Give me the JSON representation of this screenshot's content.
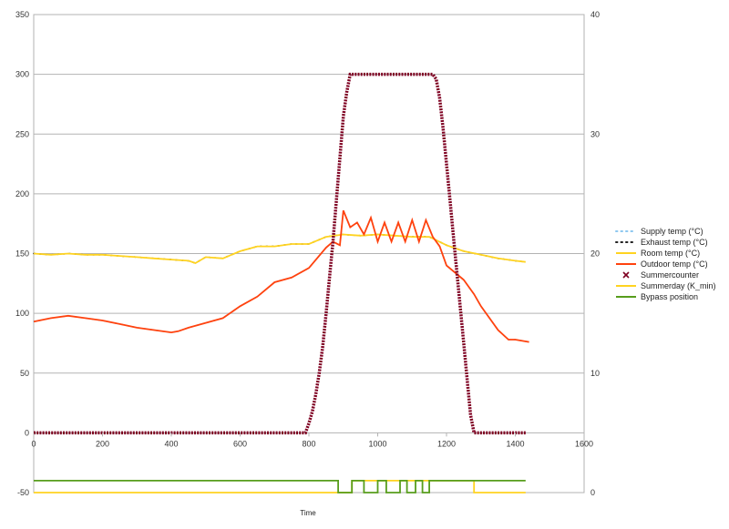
{
  "chart_data": {
    "type": "line",
    "title": "",
    "xlabel": "Time",
    "xlim": [
      0,
      1600
    ],
    "x_ticks": [
      0,
      200,
      400,
      600,
      800,
      1000,
      1200,
      1400,
      1600
    ],
    "y_left": {
      "ylim": [
        -50,
        350
      ],
      "ticks": [
        -50,
        0,
        50,
        100,
        150,
        200,
        250,
        300,
        350
      ]
    },
    "y_right": {
      "ylim": [
        0,
        40
      ],
      "ticks": [
        0,
        10,
        20,
        30,
        40
      ]
    },
    "grid": true,
    "legend_position": "right",
    "series": [
      {
        "name": "Supply temp (°C)",
        "axis": "right",
        "style": "dotted",
        "color": "#8ec8f0",
        "x": [
          0,
          50,
          100,
          150,
          200,
          250,
          300,
          350,
          400,
          420,
          450,
          500,
          550,
          600,
          650,
          700,
          750,
          800,
          850,
          870,
          890,
          900,
          920,
          940,
          960,
          980,
          1000,
          1020,
          1040,
          1060,
          1080,
          1100,
          1120,
          1140,
          1160,
          1180,
          1200,
          1250,
          1280,
          1300,
          1350,
          1380,
          1400,
          1440
        ],
        "values": [
          14.3,
          14.6,
          14.8,
          14.6,
          14.4,
          14.1,
          13.8,
          13.6,
          13.4,
          13.5,
          13.8,
          14.2,
          14.6,
          15.6,
          16.4,
          17.6,
          18.0,
          18.8,
          20.5,
          21.0,
          20.7,
          23.6,
          22.2,
          22.6,
          21.6,
          23.0,
          21.0,
          22.6,
          21.0,
          22.6,
          21.0,
          22.8,
          21.0,
          22.8,
          21.4,
          20.6,
          19.0,
          17.8,
          16.6,
          15.6,
          13.6,
          12.8,
          12.8,
          12.6
        ]
      },
      {
        "name": "Exhaust temp (°C)",
        "axis": "right",
        "style": "dotted",
        "color": "#222222",
        "x": [
          0,
          50,
          100,
          150,
          200,
          250,
          300,
          350,
          400,
          450,
          470,
          500,
          550,
          600,
          650,
          700,
          750,
          800,
          850,
          900,
          950,
          1000,
          1050,
          1100,
          1150,
          1200,
          1250,
          1300,
          1350,
          1400,
          1430
        ],
        "values": [
          20.0,
          19.9,
          20.0,
          19.9,
          19.9,
          19.8,
          19.7,
          19.6,
          19.5,
          19.4,
          19.2,
          19.7,
          19.6,
          20.2,
          20.6,
          20.6,
          20.8,
          20.8,
          21.4,
          21.6,
          21.5,
          21.6,
          21.5,
          21.4,
          21.4,
          20.7,
          20.2,
          19.9,
          19.6,
          19.4,
          19.3
        ]
      },
      {
        "name": "Room temp (°C)",
        "axis": "right",
        "style": "solid",
        "color": "#ffd320",
        "x": [
          0,
          50,
          100,
          150,
          200,
          250,
          300,
          350,
          400,
          450,
          470,
          500,
          550,
          600,
          650,
          700,
          750,
          800,
          850,
          900,
          950,
          1000,
          1050,
          1100,
          1150,
          1200,
          1250,
          1300,
          1350,
          1400,
          1430
        ],
        "values": [
          20.0,
          19.9,
          20.0,
          19.9,
          19.9,
          19.8,
          19.7,
          19.6,
          19.5,
          19.4,
          19.2,
          19.7,
          19.6,
          20.2,
          20.6,
          20.6,
          20.8,
          20.8,
          21.4,
          21.6,
          21.5,
          21.6,
          21.5,
          21.4,
          21.4,
          20.7,
          20.2,
          19.9,
          19.6,
          19.4,
          19.3
        ]
      },
      {
        "name": "Outdoor temp (°C)",
        "axis": "right",
        "style": "solid",
        "color": "#ff420e",
        "x": [
          0,
          50,
          100,
          150,
          200,
          250,
          300,
          350,
          400,
          420,
          450,
          500,
          550,
          600,
          650,
          700,
          750,
          800,
          850,
          870,
          890,
          900,
          920,
          940,
          960,
          980,
          1000,
          1020,
          1040,
          1060,
          1080,
          1100,
          1120,
          1140,
          1160,
          1180,
          1200,
          1250,
          1280,
          1300,
          1350,
          1380,
          1400,
          1440
        ],
        "values": [
          14.3,
          14.6,
          14.8,
          14.6,
          14.4,
          14.1,
          13.8,
          13.6,
          13.4,
          13.5,
          13.8,
          14.2,
          14.6,
          15.6,
          16.4,
          17.6,
          18.0,
          18.8,
          20.5,
          21.0,
          20.7,
          23.6,
          22.2,
          22.6,
          21.6,
          23.0,
          21.0,
          22.6,
          21.0,
          22.6,
          21.0,
          22.8,
          21.0,
          22.8,
          21.4,
          20.6,
          19.0,
          17.8,
          16.6,
          15.6,
          13.6,
          12.8,
          12.8,
          12.6
        ]
      },
      {
        "name": "Summercounter",
        "axis": "left",
        "style": "markers",
        "color": "#7e0021",
        "x": [
          0,
          100,
          200,
          300,
          400,
          500,
          600,
          700,
          790,
          800,
          810,
          820,
          830,
          840,
          850,
          860,
          870,
          880,
          890,
          900,
          910,
          920,
          1000,
          1100,
          1160,
          1170,
          1180,
          1190,
          1200,
          1210,
          1220,
          1230,
          1240,
          1250,
          1260,
          1270,
          1280,
          1300,
          1400,
          1430
        ],
        "values": [
          0,
          0,
          0,
          0,
          0,
          0,
          0,
          0,
          0,
          8,
          18,
          32,
          50,
          72,
          100,
          130,
          160,
          195,
          230,
          265,
          285,
          300,
          300,
          300,
          300,
          296,
          280,
          255,
          225,
          195,
          165,
          135,
          105,
          75,
          45,
          15,
          0,
          0,
          0,
          0
        ]
      },
      {
        "name": "Summerday (K_min)",
        "axis": "right",
        "style": "step",
        "color": "#ffd320",
        "x": [
          0,
          925,
          925,
          1280,
          1280,
          1430
        ],
        "values": [
          0,
          0,
          1,
          1,
          0,
          0
        ]
      },
      {
        "name": "Bypass position",
        "axis": "right",
        "style": "step",
        "color": "#579d1c",
        "x": [
          0,
          885,
          885,
          925,
          925,
          960,
          960,
          1000,
          1000,
          1025,
          1025,
          1065,
          1065,
          1085,
          1085,
          1110,
          1110,
          1130,
          1130,
          1150,
          1150,
          1160,
          1160,
          1280,
          1280,
          1430
        ],
        "values": [
          1,
          1,
          0,
          0,
          1,
          1,
          0,
          0,
          1,
          1,
          0,
          0,
          1,
          1,
          0,
          0,
          1,
          1,
          0,
          0,
          1,
          1,
          1,
          1,
          1,
          1
        ]
      }
    ]
  }
}
